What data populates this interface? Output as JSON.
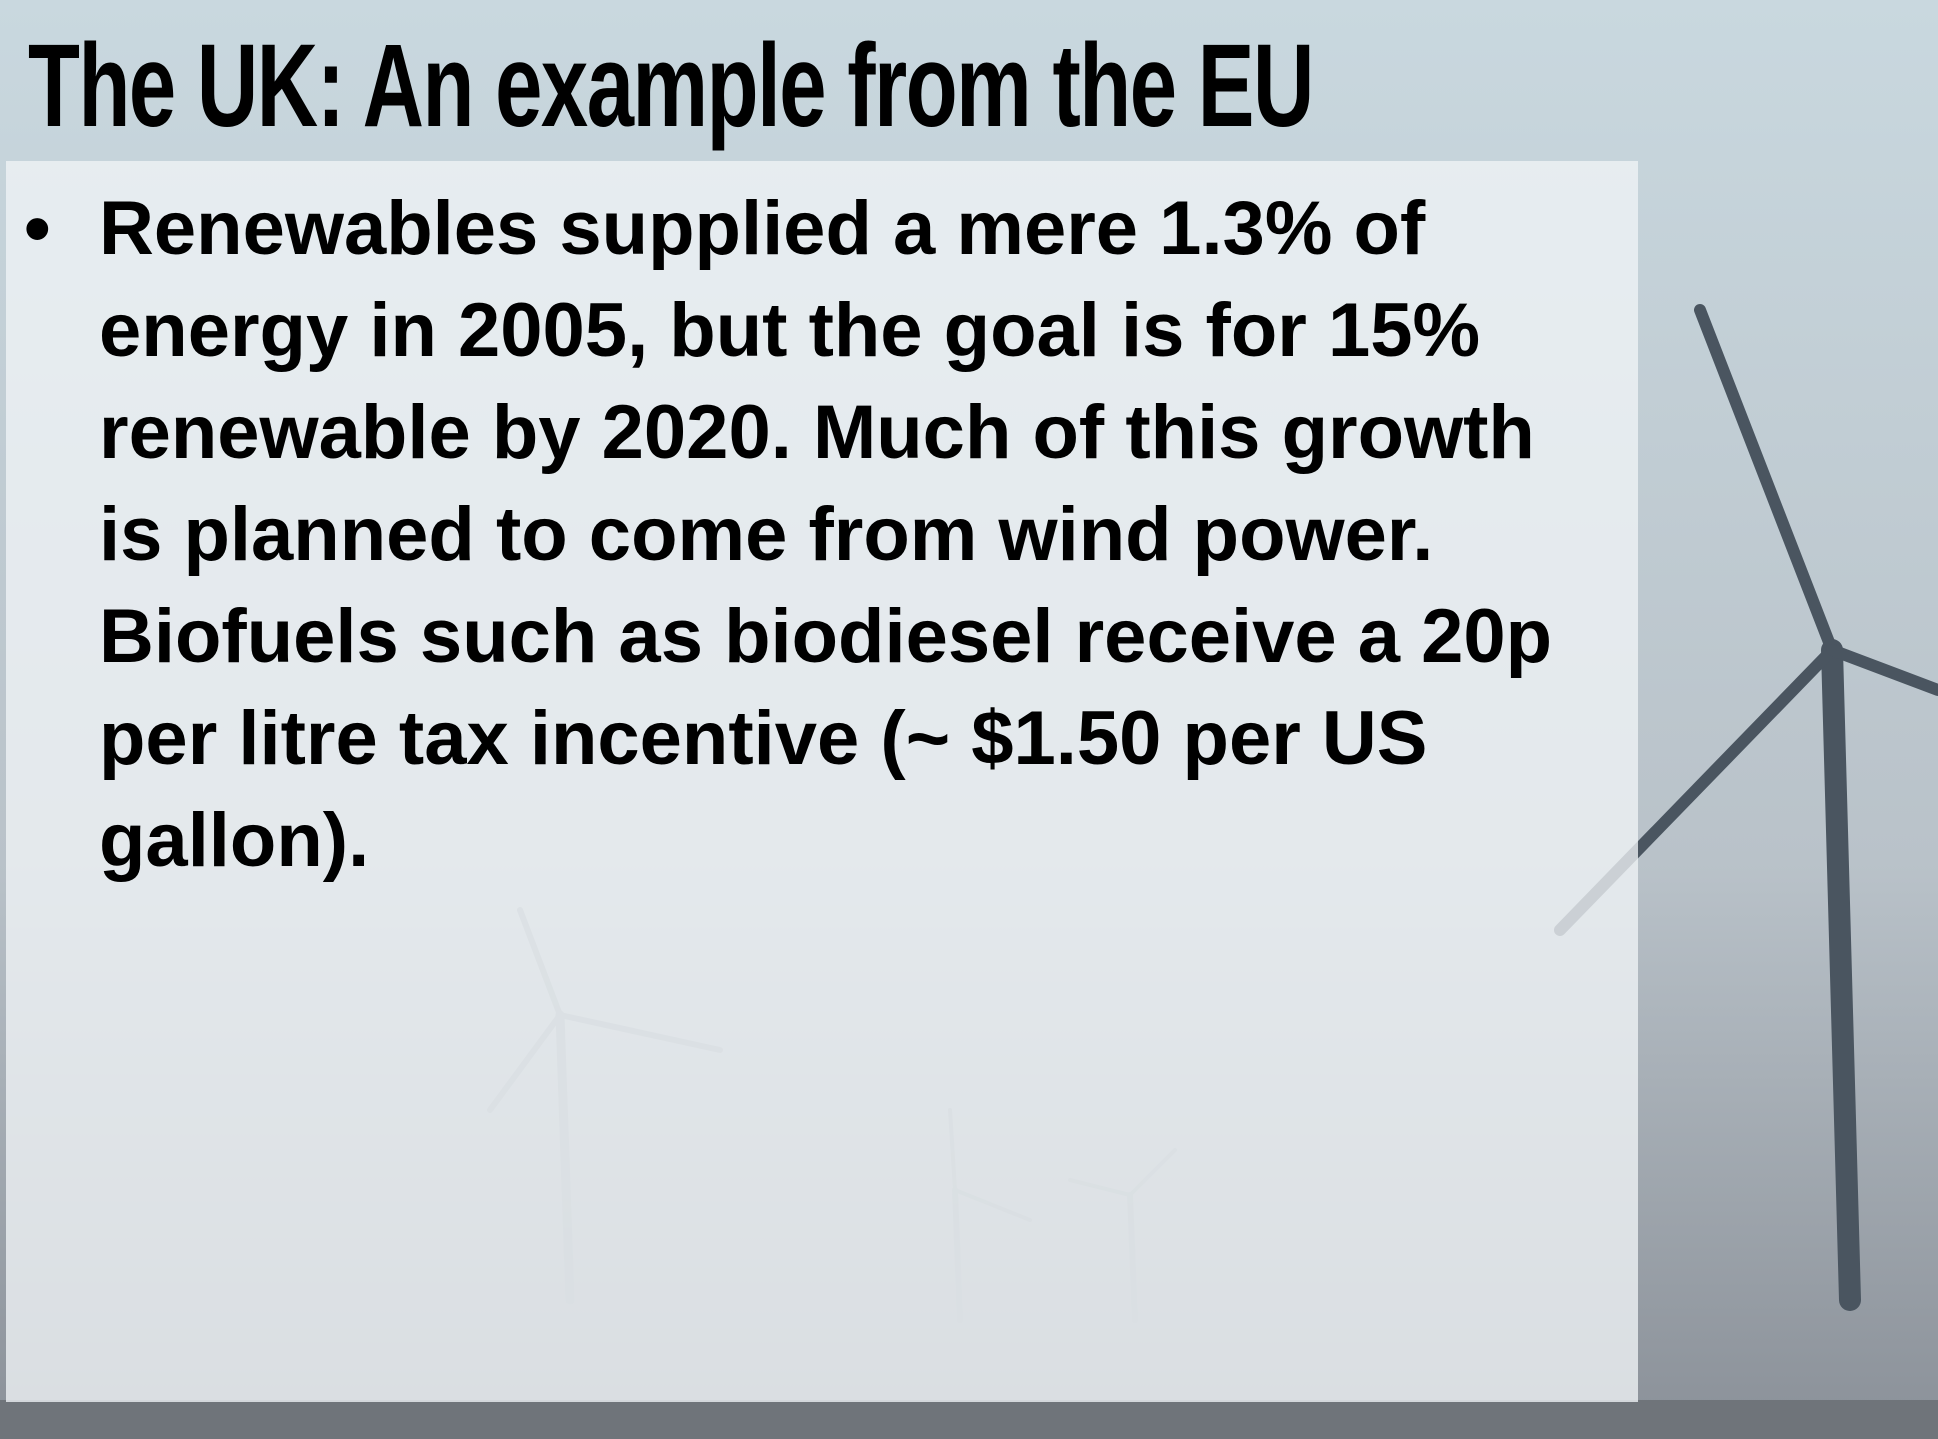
{
  "title": "The UK: An example from the EU",
  "bullets": [
    "Renewables supplied a mere 1.3% of energy in 2005, but the goal is for 15% renewable by 2020.  Much of this growth is planned to come from wind power.  Biofuels such as biodiesel receive a 20p per litre tax incentive (~ $1.50 per US gallon)."
  ]
}
